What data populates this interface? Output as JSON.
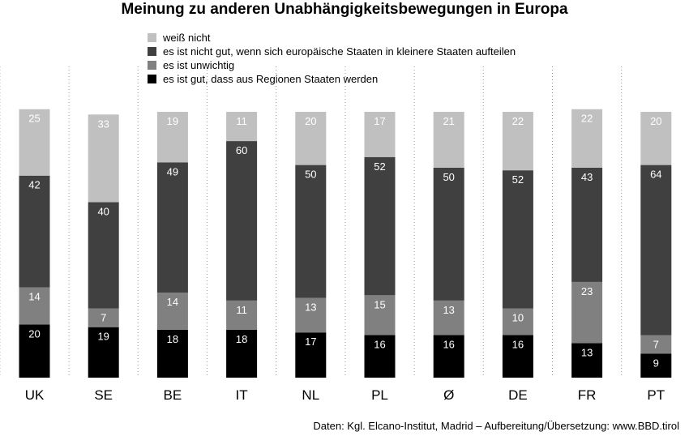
{
  "chart_data": {
    "type": "bar",
    "stacked": true,
    "title": "Meinung zu anderen Unabhängigkeitsbewegungen in Europa",
    "categories": [
      "UK",
      "SE",
      "BE",
      "IT",
      "NL",
      "PL",
      "Ø",
      "DE",
      "FR",
      "PT"
    ],
    "series": [
      {
        "name": "es ist gut, dass aus Regionen Staaten werden",
        "color": "#000000",
        "label_color": "#ffffff",
        "values": [
          20,
          19,
          18,
          18,
          17,
          16,
          16,
          16,
          13,
          9
        ]
      },
      {
        "name": "es ist unwichtig",
        "color": "#808080",
        "label_color": "#ffffff",
        "values": [
          14,
          7,
          14,
          11,
          13,
          15,
          13,
          10,
          23,
          7
        ]
      },
      {
        "name": "es ist nicht gut, wenn sich europäische Staaten in kleinere Staaten aufteilen",
        "color": "#404040",
        "label_color": "#ffffff",
        "values": [
          42,
          40,
          49,
          60,
          50,
          52,
          50,
          52,
          43,
          64
        ]
      },
      {
        "name": "weiß nicht",
        "color": "#c0c0c0",
        "label_color": "#ffffff",
        "values": [
          25,
          33,
          19,
          11,
          20,
          17,
          21,
          22,
          22,
          20
        ]
      }
    ],
    "legend_order": [
      3,
      2,
      1,
      0
    ],
    "legend_position": "top",
    "grid": "vertical dotted separators between bars",
    "source": "Daten: Kgl. Elcano-Institut, Madrid – Aufbereitung/Übersetzung: www.BBD.tirol"
  }
}
